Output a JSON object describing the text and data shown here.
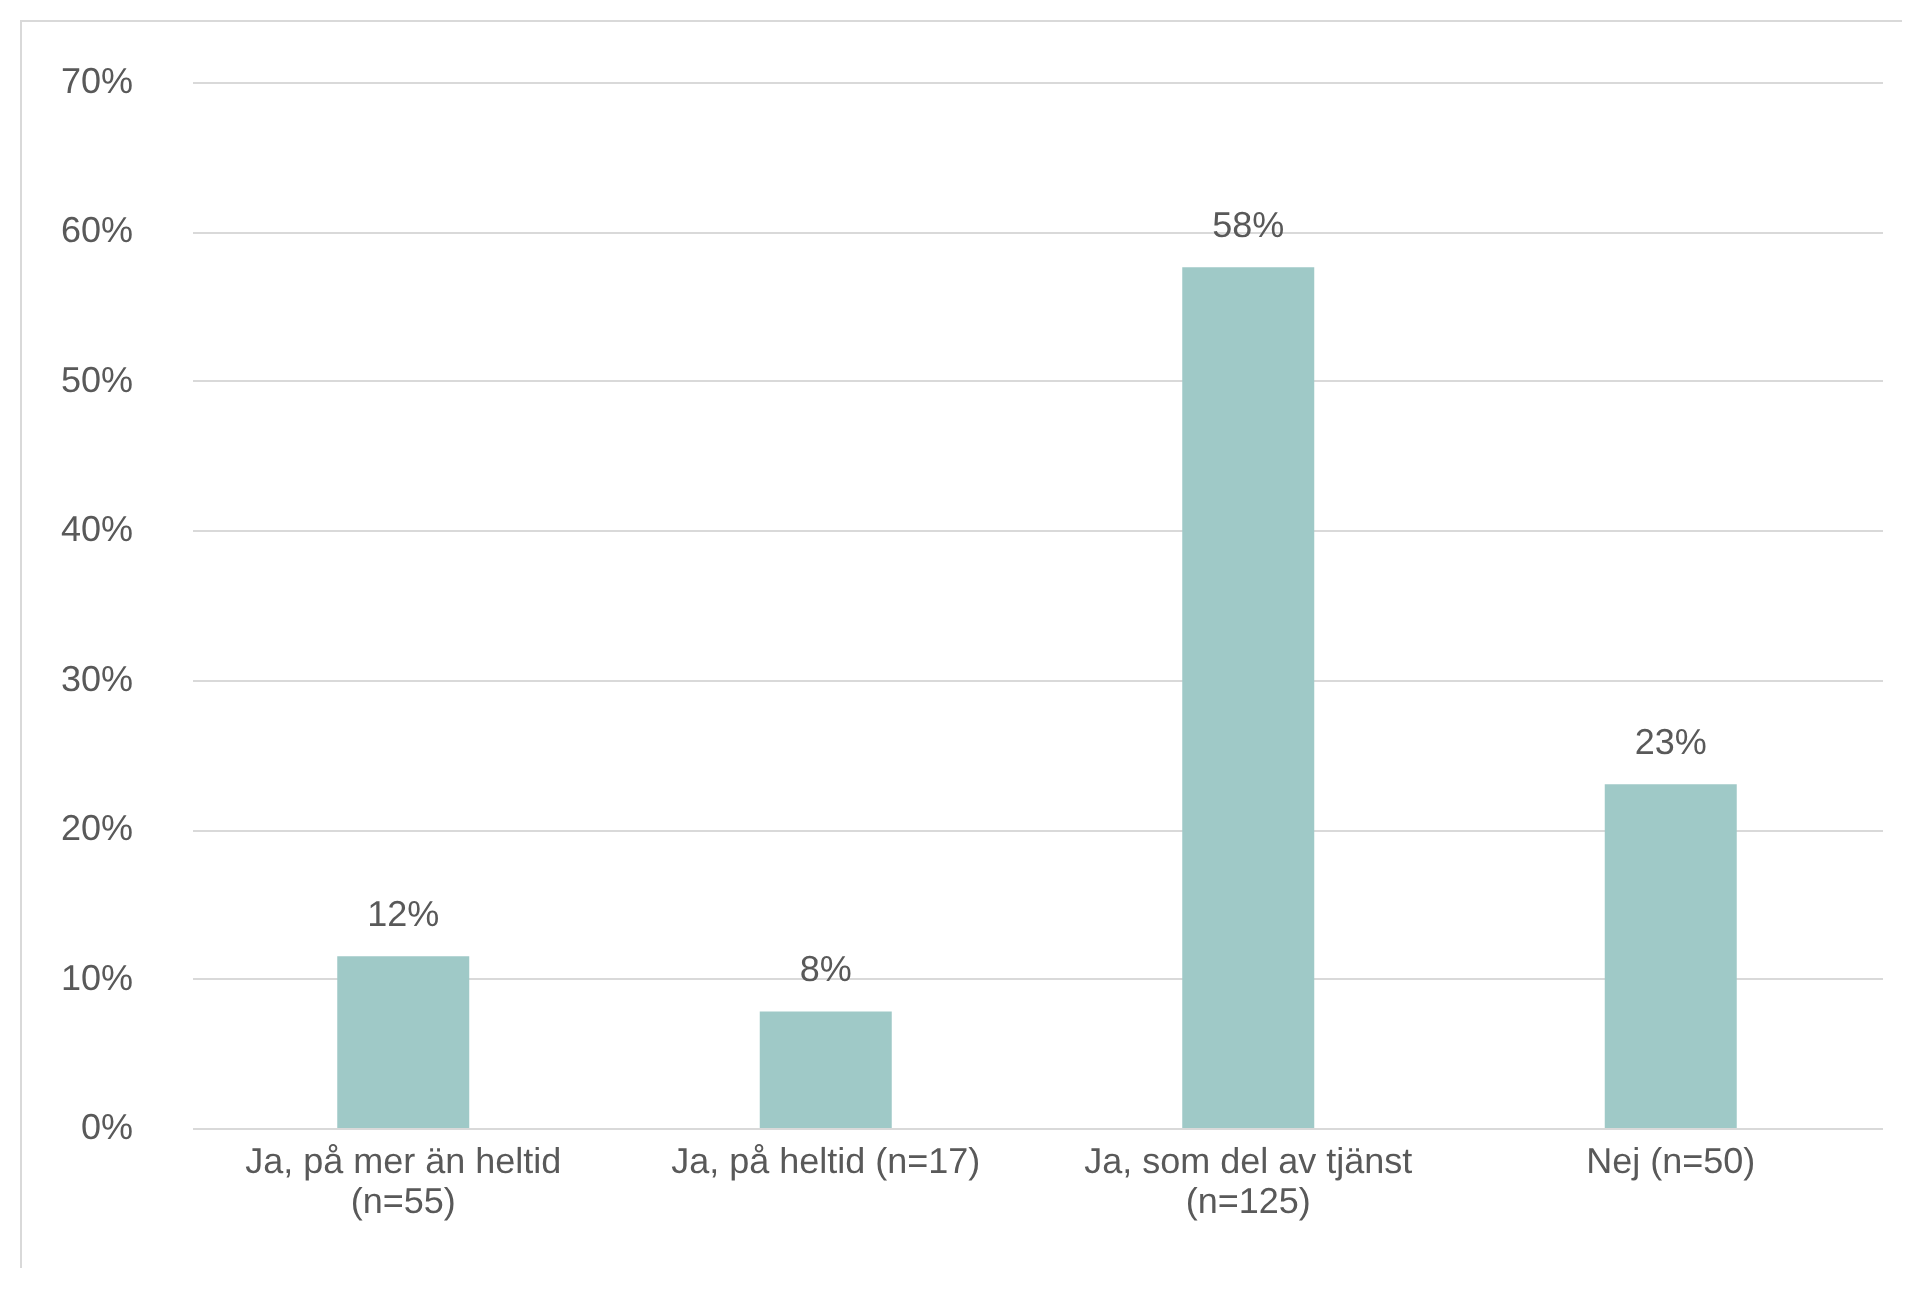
{
  "chart_data": {
    "type": "bar",
    "categories": [
      "Ja, på mer än heltid\n(n=55)",
      "Ja, på heltid (n=17)",
      "Ja, som del av tjänst\n(n=125)",
      "Nej (n=50)"
    ],
    "values": [
      11.5,
      7.8,
      57.6,
      23
    ],
    "value_labels": [
      "12%",
      "8%",
      "58%",
      "23%"
    ],
    "color": "#9fc9c7",
    "ylim": [
      0,
      70
    ],
    "yticks": [
      {
        "value": 0,
        "label": "0%"
      },
      {
        "value": 10,
        "label": "10%"
      },
      {
        "value": 20,
        "label": "20%"
      },
      {
        "value": 30,
        "label": "30%"
      },
      {
        "value": 40,
        "label": "40%"
      },
      {
        "value": 50,
        "label": "50%"
      },
      {
        "value": 60,
        "label": "60%"
      },
      {
        "value": 70,
        "label": "70%"
      }
    ],
    "grid": "y"
  }
}
